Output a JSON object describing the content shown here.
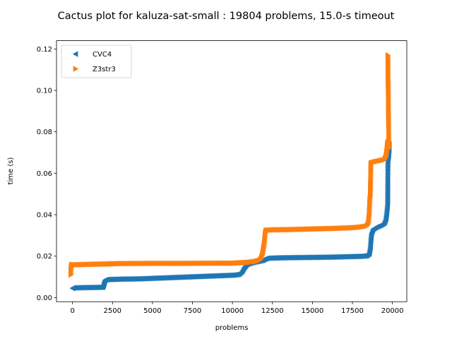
{
  "chart_data": {
    "type": "scatter",
    "title": "Cactus plot for kaluza-sat-small : 19804 problems, 15.0-s timeout",
    "xlabel": "problems",
    "ylabel": "time (s)",
    "xlim": [
      -1000,
      20900
    ],
    "ylim": [
      -0.002,
      0.124
    ],
    "xticks": [
      0,
      2500,
      5000,
      7500,
      10000,
      12500,
      15000,
      17500,
      20000
    ],
    "yticks": [
      0.0,
      0.02,
      0.04,
      0.06,
      0.08,
      0.1,
      0.12
    ],
    "xtick_labels": [
      "0",
      "2500",
      "5000",
      "7500",
      "10000",
      "12500",
      "15000",
      "17500",
      "20000"
    ],
    "ytick_labels": [
      "0.00",
      "0.02",
      "0.04",
      "0.06",
      "0.08",
      "0.10",
      "0.12"
    ],
    "legend_position": "top-left",
    "series": [
      {
        "name": "CVC4",
        "marker": "triangle-left",
        "color": "#1f77b4",
        "points": [
          [
            0,
            0.0045
          ],
          [
            100,
            0.0047
          ],
          [
            600,
            0.0048
          ],
          [
            1500,
            0.0049
          ],
          [
            1900,
            0.005
          ],
          [
            1950,
            0.006
          ],
          [
            2000,
            0.0075
          ],
          [
            2050,
            0.0085
          ],
          [
            2200,
            0.0087
          ],
          [
            3000,
            0.0089
          ],
          [
            4000,
            0.009
          ],
          [
            5000,
            0.0093
          ],
          [
            6000,
            0.0096
          ],
          [
            7000,
            0.0099
          ],
          [
            8000,
            0.0102
          ],
          [
            9000,
            0.0105
          ],
          [
            10000,
            0.0108
          ],
          [
            10400,
            0.0112
          ],
          [
            10600,
            0.0125
          ],
          [
            10750,
            0.0145
          ],
          [
            10900,
            0.016
          ],
          [
            11200,
            0.0168
          ],
          [
            11600,
            0.0175
          ],
          [
            11900,
            0.018
          ],
          [
            12000,
            0.0185
          ],
          [
            12200,
            0.019
          ],
          [
            13000,
            0.0192
          ],
          [
            14000,
            0.0193
          ],
          [
            15000,
            0.0194
          ],
          [
            16000,
            0.0195
          ],
          [
            17000,
            0.0197
          ],
          [
            18000,
            0.0199
          ],
          [
            18400,
            0.0202
          ],
          [
            18550,
            0.021
          ],
          [
            18620,
            0.024
          ],
          [
            18660,
            0.028
          ],
          [
            18700,
            0.031
          ],
          [
            18800,
            0.033
          ],
          [
            19000,
            0.034
          ],
          [
            19300,
            0.035
          ],
          [
            19500,
            0.036
          ],
          [
            19600,
            0.038
          ],
          [
            19650,
            0.041
          ],
          [
            19700,
            0.045
          ],
          [
            19720,
            0.066
          ],
          [
            19760,
            0.068
          ],
          [
            19790,
            0.071
          ],
          [
            19804,
            0.074
          ]
        ]
      },
      {
        "name": "Z3str3",
        "marker": "triangle-right",
        "color": "#ff7f0e",
        "points": [
          [
            -100,
            0.011
          ],
          [
            -100,
            0.013
          ],
          [
            -80,
            0.015
          ],
          [
            -50,
            0.016
          ],
          [
            0,
            0.0158
          ],
          [
            1000,
            0.016
          ],
          [
            2000,
            0.0162
          ],
          [
            3000,
            0.0164
          ],
          [
            5000,
            0.0165
          ],
          [
            7000,
            0.0165
          ],
          [
            9000,
            0.0166
          ],
          [
            10000,
            0.0166
          ],
          [
            10500,
            0.0168
          ],
          [
            11000,
            0.017
          ],
          [
            11500,
            0.0175
          ],
          [
            11700,
            0.018
          ],
          [
            11800,
            0.019
          ],
          [
            11880,
            0.021
          ],
          [
            11950,
            0.024
          ],
          [
            12000,
            0.027
          ],
          [
            12050,
            0.031
          ],
          [
            12100,
            0.0325
          ],
          [
            12600,
            0.0327
          ],
          [
            13500,
            0.0328
          ],
          [
            14500,
            0.033
          ],
          [
            15500,
            0.0332
          ],
          [
            16500,
            0.0334
          ],
          [
            17500,
            0.0337
          ],
          [
            18000,
            0.034
          ],
          [
            18400,
            0.0345
          ],
          [
            18500,
            0.036
          ],
          [
            18550,
            0.04
          ],
          [
            18600,
            0.0485
          ],
          [
            18620,
            0.049
          ],
          [
            18660,
            0.065
          ],
          [
            18900,
            0.0655
          ],
          [
            19200,
            0.066
          ],
          [
            19500,
            0.0665
          ],
          [
            19600,
            0.068
          ],
          [
            19650,
            0.071
          ],
          [
            19700,
            0.075
          ],
          [
            19730,
            0.074
          ],
          [
            19780,
            0.072
          ],
          [
            19720,
            0.117
          ]
        ]
      }
    ]
  }
}
